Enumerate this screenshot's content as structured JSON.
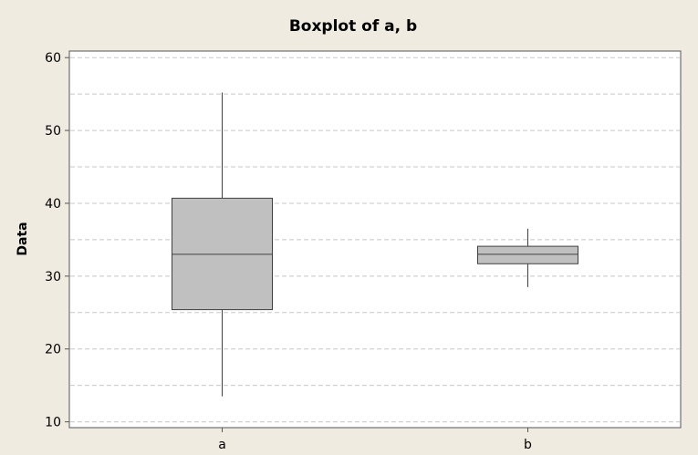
{
  "chart_data": {
    "type": "box",
    "title": "Boxplot of a, b",
    "xlabel": "",
    "ylabel": "Data",
    "ylim": [
      9.2,
      60.9
    ],
    "yticks": [
      10,
      20,
      30,
      40,
      50,
      60
    ],
    "grid": true,
    "categories": [
      "a",
      "b"
    ],
    "boxes": [
      {
        "category": "a",
        "whisker_low": 13.5,
        "q1": 25.4,
        "median": 33.0,
        "q3": 40.7,
        "whisker_high": 55.2
      },
      {
        "category": "b",
        "whisker_low": 28.5,
        "q1": 31.7,
        "median": 33.0,
        "q3": 34.1,
        "whisker_high": 36.5
      }
    ],
    "colors": {
      "plot_background": "#ffffff",
      "page_background": "#f0ebe1",
      "box_fill": "#c0c0c0",
      "box_stroke": "#404040",
      "grid": "#c8c8c8"
    }
  }
}
